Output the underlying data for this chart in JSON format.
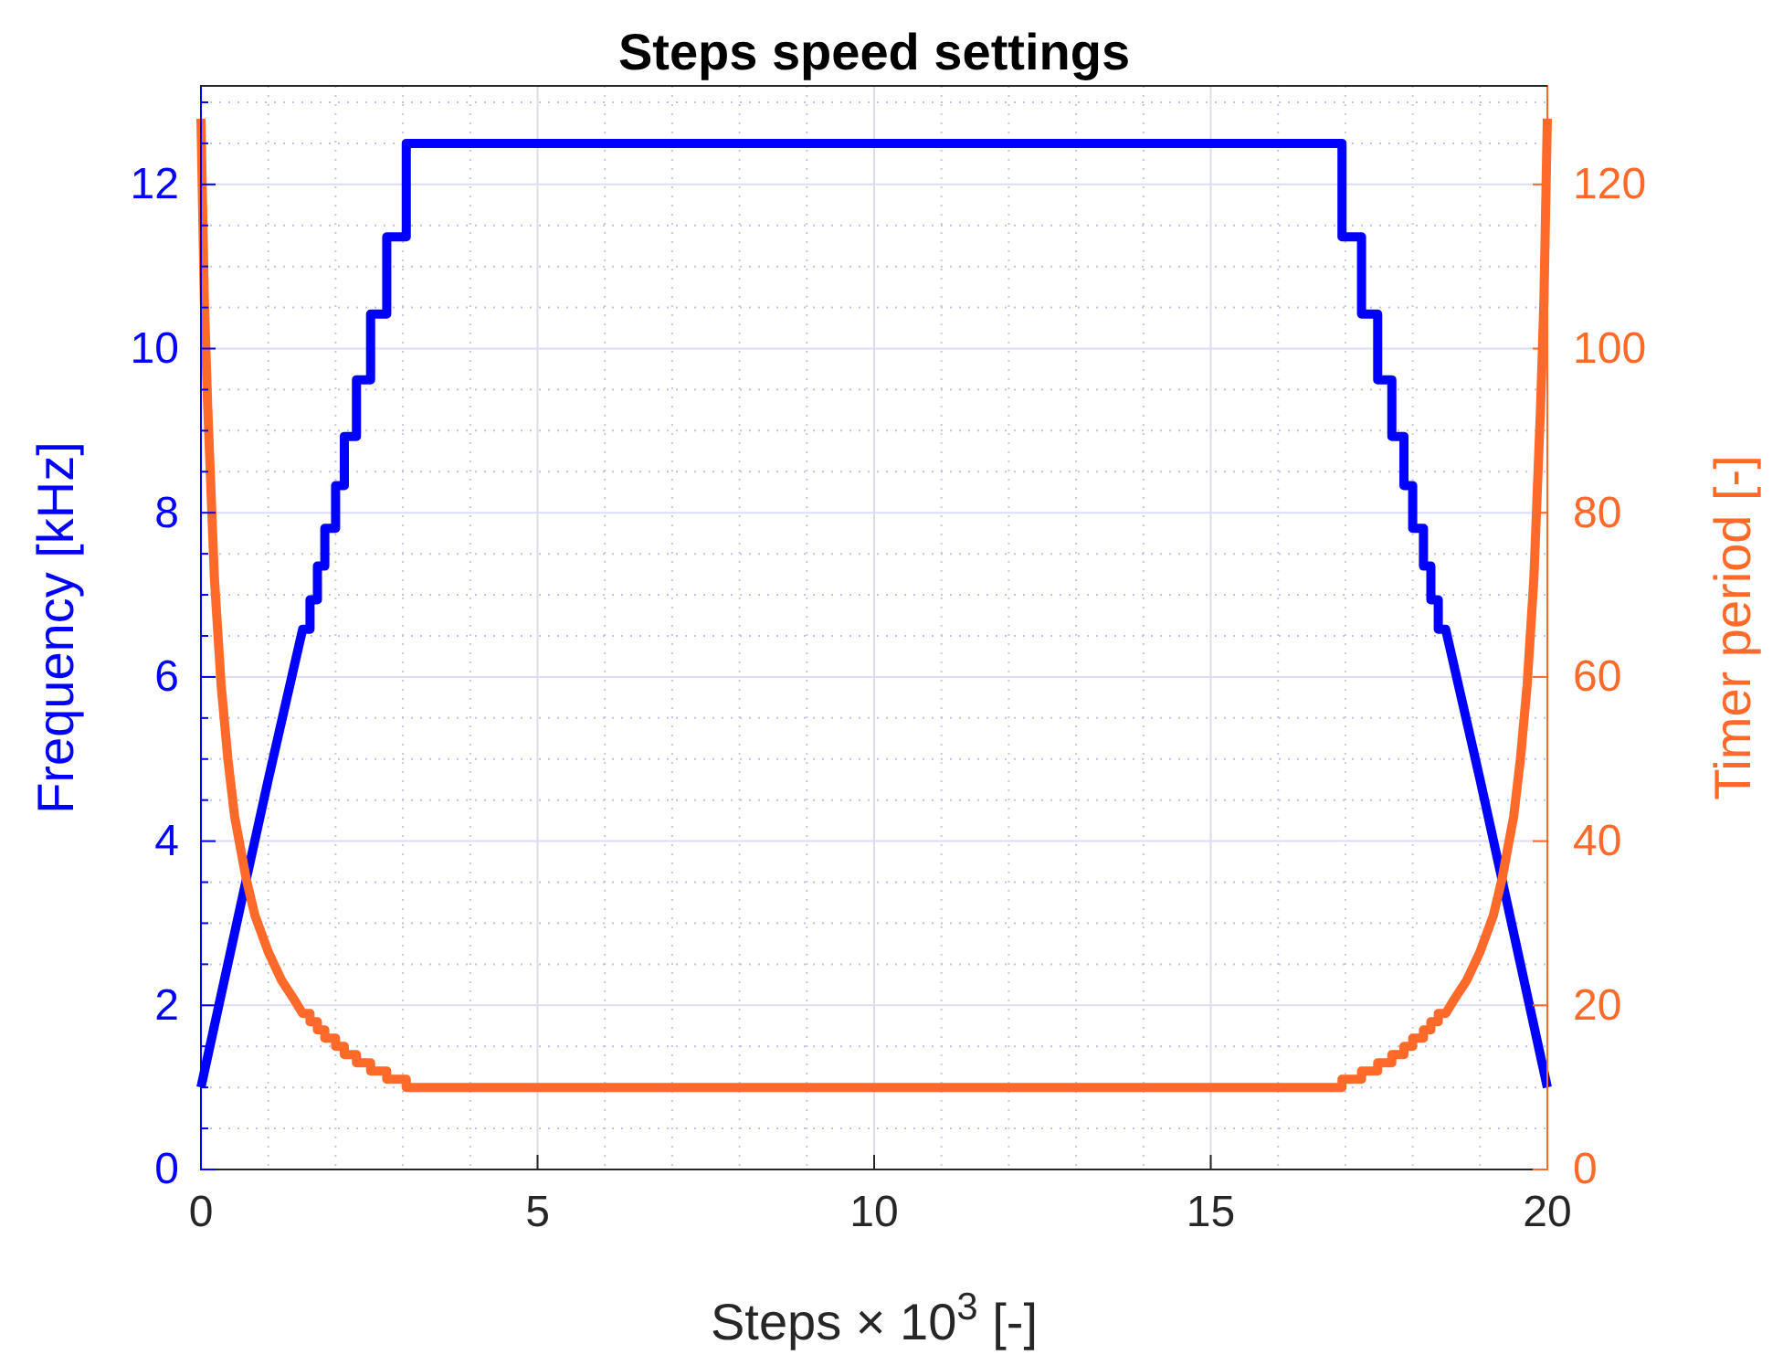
{
  "chart_data": {
    "type": "line",
    "title": "Steps speed settings",
    "xlabel": "Steps  × 10$^{3}$ [-]",
    "ylabel": "Frequency [kHz]",
    "y2label": "Timer period [-]",
    "xlim": [
      0,
      20
    ],
    "xticks": [
      0,
      5,
      10,
      15,
      20
    ],
    "ylim": [
      0,
      13.2
    ],
    "yticks": [
      0,
      {
        "value": 0.5,
        "label": null
      },
      {
        "value": 1,
        "label": null
      },
      {
        "value": 1.5,
        "label": null
      },
      2,
      {
        "value": 2.5,
        "label": null
      },
      {
        "value": 3,
        "label": null
      },
      {
        "value": 3.5,
        "label": null
      },
      4,
      {
        "value": 4.5,
        "label": null
      },
      {
        "value": 5,
        "label": null
      },
      {
        "value": 5.5,
        "label": null
      },
      6,
      {
        "value": 6.5,
        "label": null
      },
      {
        "value": 7,
        "label": null
      },
      {
        "value": 7.5,
        "label": null
      },
      8,
      {
        "value": 8.5,
        "label": null
      },
      {
        "value": 9,
        "label": null
      },
      {
        "value": 9.5,
        "label": null
      },
      10,
      {
        "value": 10.5,
        "label": null
      },
      {
        "value": 11,
        "label": null
      },
      {
        "value": 11.5,
        "label": null
      },
      12,
      {
        "value": 12.5,
        "label": null
      },
      {
        "value": 13,
        "label": null
      }
    ],
    "y2lim": [
      0,
      132
    ],
    "y2ticks": [
      0,
      20,
      40,
      60,
      80,
      100,
      120
    ],
    "grid": true,
    "line_style": "solid",
    "marker": "none",
    "series": [
      {
        "color": "#0000ff",
        "x": [
          0,
          0.67,
          1.0,
          1.51,
          1.62,
          1.62,
          1.73,
          1.73,
          1.84,
          1.84,
          2.0,
          2.0,
          2.13,
          2.13,
          2.31,
          2.31,
          2.52,
          2.52,
          2.76,
          2.76,
          3.05,
          3.05,
          16.95,
          16.95,
          17.24,
          17.24,
          17.48,
          17.48,
          17.69,
          17.69,
          17.87,
          17.87,
          18.0,
          18.0,
          18.16,
          18.16,
          18.27,
          18.27,
          18.38,
          18.38,
          18.49,
          19.0,
          19.33,
          20
        ],
        "values": [
          1,
          3.52,
          4.75,
          6.58,
          6.58,
          6.94,
          6.94,
          7.35,
          7.35,
          7.81,
          7.81,
          8.33,
          8.33,
          8.93,
          8.93,
          9.62,
          9.62,
          10.42,
          10.42,
          11.36,
          11.36,
          12.5,
          12.5,
          11.36,
          11.36,
          10.42,
          10.42,
          9.62,
          9.62,
          8.93,
          8.93,
          8.33,
          8.33,
          7.81,
          7.81,
          7.35,
          7.35,
          6.94,
          6.94,
          6.58,
          6.58,
          4.75,
          3.52,
          1
        ]
      },
      {
        "color": "#ff6a2a",
        "axis": "y2",
        "x": [
          0,
          0.05,
          0.1,
          0.2,
          0.3,
          0.4,
          0.5,
          0.67,
          0.8,
          1.0,
          1.2,
          1.4,
          1.51,
          1.62,
          1.62,
          1.73,
          1.73,
          1.84,
          1.84,
          2.0,
          2.0,
          2.13,
          2.13,
          2.31,
          2.31,
          2.52,
          2.52,
          2.76,
          2.76,
          3.05,
          3.05,
          16.95,
          16.95,
          17.24,
          17.24,
          17.48,
          17.48,
          17.69,
          17.69,
          17.87,
          17.87,
          18.0,
          18.0,
          18.16,
          18.16,
          18.27,
          18.27,
          18.38,
          18.38,
          18.49,
          18.6,
          18.8,
          19.0,
          19.2,
          19.33,
          19.5,
          19.6,
          19.7,
          19.8,
          19.9,
          19.95,
          20
        ],
        "values": [
          128,
          106,
          93,
          72,
          59,
          50,
          43,
          35.5,
          31,
          26.5,
          23,
          20.5,
          19,
          19,
          18,
          18,
          17,
          17,
          16,
          16,
          15,
          15,
          14,
          14,
          13,
          13,
          12,
          12,
          11,
          11,
          10,
          10,
          11,
          11,
          12,
          12,
          13,
          13,
          14,
          14,
          15,
          15,
          16,
          16,
          17,
          17,
          18,
          18,
          19,
          19,
          20.5,
          23,
          26.5,
          31,
          35.5,
          43,
          50,
          59,
          72,
          93,
          106,
          128
        ]
      }
    ]
  }
}
